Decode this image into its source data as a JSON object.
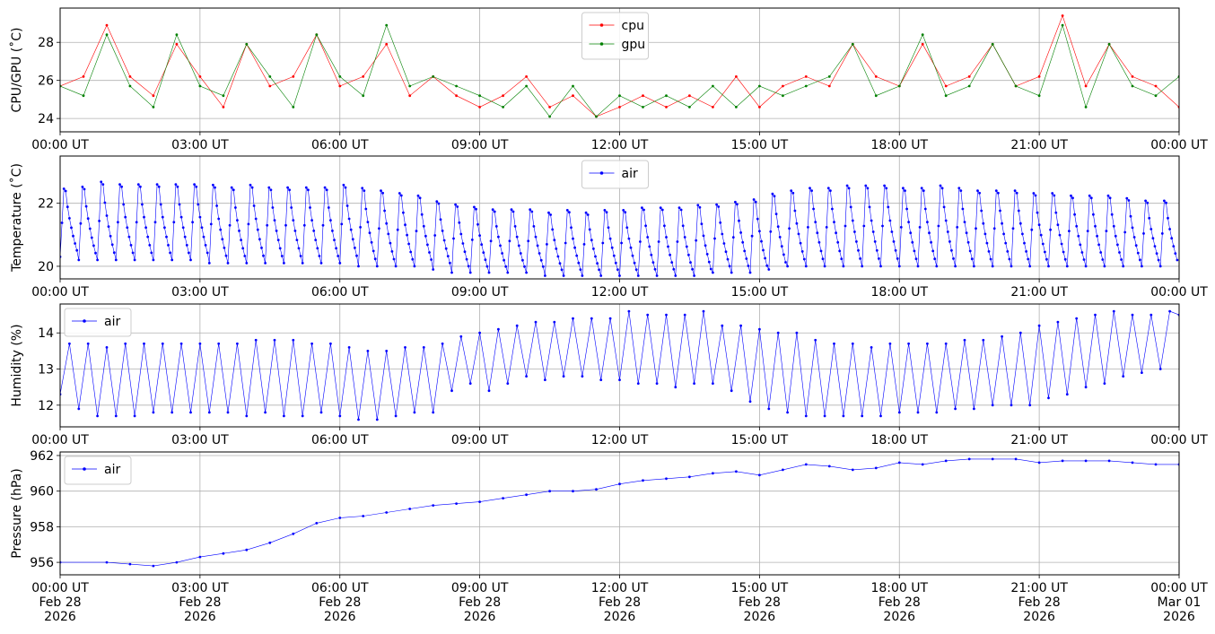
{
  "chart_data": [
    {
      "type": "line",
      "ylabel": "CPU/GPU (˚C)",
      "x_ticks": [
        "00:00 UT",
        "03:00 UT",
        "06:00 UT",
        "09:00 UT",
        "12:00 UT",
        "15:00 UT",
        "18:00 UT",
        "21:00 UT",
        "00:00 UT"
      ],
      "xlim_hours": [
        0,
        24
      ],
      "ylim": [
        23.3,
        29.8
      ],
      "y_ticks": [
        24,
        26,
        28
      ],
      "grid": true,
      "legend": "upper center",
      "series": [
        {
          "name": "cpu",
          "color": "#ff0000",
          "marker": "dot",
          "x_hours": [
            0,
            0.5,
            1,
            1.5,
            2,
            2.5,
            3,
            3.5,
            4,
            4.5,
            5,
            5.5,
            6,
            6.5,
            7,
            7.5,
            8,
            8.5,
            9,
            9.5,
            10,
            10.5,
            11,
            11.5,
            12,
            12.5,
            13,
            13.5,
            14,
            14.5,
            15,
            15.5,
            16,
            16.5,
            17,
            17.5,
            18,
            18.5,
            19,
            19.5,
            20,
            20.5,
            21,
            21.5,
            22,
            22.5,
            23,
            23.5,
            24
          ],
          "values": [
            25.7,
            26.2,
            28.9,
            26.2,
            25.2,
            27.9,
            26.2,
            24.6,
            27.9,
            25.7,
            26.2,
            28.4,
            25.7,
            26.2,
            27.9,
            25.2,
            26.2,
            25.2,
            24.6,
            25.2,
            26.2,
            24.6,
            25.2,
            24.1,
            24.6,
            25.2,
            24.6,
            25.2,
            24.6,
            26.2,
            24.6,
            25.7,
            26.2,
            25.7,
            27.9,
            26.2,
            25.7,
            27.9,
            25.7,
            26.2,
            27.9,
            25.7,
            26.2,
            29.4,
            25.7,
            27.9,
            26.2,
            25.7,
            24.6
          ]
        },
        {
          "name": "gpu",
          "color": "#008000",
          "marker": "dot",
          "x_hours": [
            0,
            0.5,
            1,
            1.5,
            2,
            2.5,
            3,
            3.5,
            4,
            4.5,
            5,
            5.5,
            6,
            6.5,
            7,
            7.5,
            8,
            8.5,
            9,
            9.5,
            10,
            10.5,
            11,
            11.5,
            12,
            12.5,
            13,
            13.5,
            14,
            14.5,
            15,
            15.5,
            16,
            16.5,
            17,
            17.5,
            18,
            18.5,
            19,
            19.5,
            20,
            20.5,
            21,
            21.5,
            22,
            22.5,
            23,
            23.5,
            24
          ],
          "values": [
            25.7,
            25.2,
            28.4,
            25.7,
            24.6,
            28.4,
            25.7,
            25.2,
            27.9,
            26.2,
            24.6,
            28.4,
            26.2,
            25.2,
            28.9,
            25.7,
            26.2,
            25.7,
            25.2,
            24.6,
            25.7,
            24.1,
            25.7,
            24.1,
            25.2,
            24.6,
            25.2,
            24.6,
            25.7,
            24.6,
            25.7,
            25.2,
            25.7,
            26.2,
            27.9,
            25.2,
            25.7,
            28.4,
            25.2,
            25.7,
            27.9,
            25.7,
            25.2,
            28.9,
            24.6,
            27.9,
            25.7,
            25.2,
            26.2
          ]
        }
      ]
    },
    {
      "type": "line",
      "ylabel": "Temperature (˚C)",
      "x_ticks": [
        "00:00 UT",
        "03:00 UT",
        "06:00 UT",
        "09:00 UT",
        "12:00 UT",
        "15:00 UT",
        "18:00 UT",
        "21:00 UT",
        "00:00 UT"
      ],
      "xlim_hours": [
        0,
        24
      ],
      "ylim": [
        19.6,
        23.5
      ],
      "y_ticks": [
        20,
        22
      ],
      "grid": true,
      "legend": "upper center",
      "series": [
        {
          "name": "air",
          "color": "#0000ff",
          "marker": "dot",
          "cycles": [
            {
              "start": 0.0,
              "peak": 23.0,
              "trough": 20.3
            },
            {
              "start": 0.4,
              "peak": 23.1,
              "trough": 20.2
            },
            {
              "start": 0.8,
              "peak": 23.3,
              "trough": 20.2
            },
            {
              "start": 1.2,
              "peak": 23.2,
              "trough": 20.2
            },
            {
              "start": 1.6,
              "peak": 23.2,
              "trough": 20.2
            },
            {
              "start": 2.0,
              "peak": 23.2,
              "trough": 20.2
            },
            {
              "start": 2.4,
              "peak": 23.2,
              "trough": 20.2
            },
            {
              "start": 2.8,
              "peak": 23.2,
              "trough": 20.2
            },
            {
              "start": 3.2,
              "peak": 23.2,
              "trough": 20.1
            },
            {
              "start": 3.6,
              "peak": 23.1,
              "trough": 20.1
            },
            {
              "start": 4.0,
              "peak": 23.2,
              "trough": 20.1
            },
            {
              "start": 4.4,
              "peak": 23.1,
              "trough": 20.1
            },
            {
              "start": 4.8,
              "peak": 23.1,
              "trough": 20.1
            },
            {
              "start": 5.2,
              "peak": 23.1,
              "trough": 20.1
            },
            {
              "start": 5.6,
              "peak": 23.1,
              "trough": 20.1
            },
            {
              "start": 6.0,
              "peak": 23.2,
              "trough": 20.1
            },
            {
              "start": 6.4,
              "peak": 23.1,
              "trough": 20.0
            },
            {
              "start": 6.8,
              "peak": 23.0,
              "trough": 20.0
            },
            {
              "start": 7.2,
              "peak": 22.9,
              "trough": 20.0
            },
            {
              "start": 7.6,
              "peak": 22.8,
              "trough": 20.0
            },
            {
              "start": 8.0,
              "peak": 22.6,
              "trough": 19.9
            },
            {
              "start": 8.4,
              "peak": 22.5,
              "trough": 19.8
            },
            {
              "start": 8.8,
              "peak": 22.4,
              "trough": 19.8
            },
            {
              "start": 9.2,
              "peak": 22.3,
              "trough": 19.8
            },
            {
              "start": 9.6,
              "peak": 22.3,
              "trough": 19.8
            },
            {
              "start": 10.0,
              "peak": 22.3,
              "trough": 19.8
            },
            {
              "start": 10.4,
              "peak": 22.2,
              "trough": 19.7
            },
            {
              "start": 10.8,
              "peak": 22.3,
              "trough": 19.7
            },
            {
              "start": 11.2,
              "peak": 22.2,
              "trough": 19.7
            },
            {
              "start": 11.6,
              "peak": 22.3,
              "trough": 19.7
            },
            {
              "start": 12.0,
              "peak": 22.3,
              "trough": 19.7
            },
            {
              "start": 12.4,
              "peak": 22.4,
              "trough": 19.7
            },
            {
              "start": 12.8,
              "peak": 22.4,
              "trough": 19.7
            },
            {
              "start": 13.2,
              "peak": 22.4,
              "trough": 19.7
            },
            {
              "start": 13.6,
              "peak": 22.5,
              "trough": 19.7
            },
            {
              "start": 14.0,
              "peak": 22.5,
              "trough": 19.8
            },
            {
              "start": 14.4,
              "peak": 22.6,
              "trough": 19.8
            },
            {
              "start": 14.8,
              "peak": 22.7,
              "trough": 19.8
            },
            {
              "start": 15.2,
              "peak": 22.9,
              "trough": 19.9
            },
            {
              "start": 15.6,
              "peak": 23.0,
              "trough": 20.0
            },
            {
              "start": 16.0,
              "peak": 23.1,
              "trough": 20.0
            },
            {
              "start": 16.4,
              "peak": 23.1,
              "trough": 20.0
            },
            {
              "start": 16.8,
              "peak": 23.2,
              "trough": 20.0
            },
            {
              "start": 17.2,
              "peak": 23.2,
              "trough": 20.0
            },
            {
              "start": 17.6,
              "peak": 23.2,
              "trough": 20.0
            },
            {
              "start": 18.0,
              "peak": 23.1,
              "trough": 20.0
            },
            {
              "start": 18.4,
              "peak": 23.1,
              "trough": 20.0
            },
            {
              "start": 18.8,
              "peak": 23.2,
              "trough": 20.0
            },
            {
              "start": 19.2,
              "peak": 23.1,
              "trough": 20.0
            },
            {
              "start": 19.6,
              "peak": 23.0,
              "trough": 20.0
            },
            {
              "start": 20.0,
              "peak": 23.0,
              "trough": 20.0
            },
            {
              "start": 20.4,
              "peak": 23.0,
              "trough": 20.0
            },
            {
              "start": 20.8,
              "peak": 22.9,
              "trough": 20.0
            },
            {
              "start": 21.2,
              "peak": 22.9,
              "trough": 20.0
            },
            {
              "start": 21.6,
              "peak": 22.8,
              "trough": 20.0
            },
            {
              "start": 22.0,
              "peak": 22.8,
              "trough": 20.0
            },
            {
              "start": 22.4,
              "peak": 22.8,
              "trough": 20.0
            },
            {
              "start": 22.8,
              "peak": 22.7,
              "trough": 20.0
            },
            {
              "start": 23.2,
              "peak": 22.6,
              "trough": 20.0
            },
            {
              "start": 23.6,
              "peak": 22.6,
              "trough": 20.0
            }
          ]
        }
      ]
    },
    {
      "type": "line",
      "ylabel": "Humidity (%)",
      "x_ticks": [
        "00:00 UT",
        "03:00 UT",
        "06:00 UT",
        "09:00 UT",
        "12:00 UT",
        "15:00 UT",
        "18:00 UT",
        "21:00 UT",
        "00:00 UT"
      ],
      "xlim_hours": [
        0,
        24
      ],
      "ylim": [
        11.4,
        14.8
      ],
      "y_ticks": [
        12,
        13,
        14
      ],
      "grid": true,
      "legend": "upper left",
      "series": [
        {
          "name": "air",
          "color": "#0000ff",
          "marker": "dot",
          "x_hours": [
            0,
            0.2,
            0.4,
            0.6,
            0.8,
            1.0,
            1.2,
            1.4,
            1.6,
            1.8,
            2.0,
            2.2,
            2.4,
            2.6,
            2.8,
            3.0,
            3.2,
            3.4,
            3.6,
            3.8,
            4.0,
            4.2,
            4.4,
            4.6,
            4.8,
            5.0,
            5.2,
            5.4,
            5.6,
            5.8,
            6.0,
            6.2,
            6.4,
            6.6,
            6.8,
            7.0,
            7.2,
            7.4,
            7.6,
            7.8,
            8.0,
            8.2,
            8.4,
            8.6,
            8.8,
            9.0,
            9.2,
            9.4,
            9.6,
            9.8,
            10.0,
            10.2,
            10.4,
            10.6,
            10.8,
            11.0,
            11.2,
            11.4,
            11.6,
            11.8,
            12.0,
            12.2,
            12.4,
            12.6,
            12.8,
            13.0,
            13.2,
            13.4,
            13.6,
            13.8,
            14.0,
            14.2,
            14.4,
            14.6,
            14.8,
            15.0,
            15.2,
            15.4,
            15.6,
            15.8,
            16.0,
            16.2,
            16.4,
            16.6,
            16.8,
            17.0,
            17.2,
            17.4,
            17.6,
            17.8,
            18.0,
            18.2,
            18.4,
            18.6,
            18.8,
            19.0,
            19.2,
            19.4,
            19.6,
            19.8,
            20.0,
            20.2,
            20.4,
            20.6,
            20.8,
            21.0,
            21.2,
            21.4,
            21.6,
            21.8,
            22.0,
            22.2,
            22.4,
            22.6,
            22.8,
            23.0,
            23.2,
            23.4,
            23.6,
            23.8,
            24.0
          ],
          "values": [
            12.3,
            13.7,
            11.9,
            13.7,
            11.7,
            13.6,
            11.7,
            13.7,
            11.7,
            13.7,
            11.8,
            13.7,
            11.8,
            13.7,
            11.8,
            13.7,
            11.8,
            13.7,
            11.8,
            13.7,
            11.7,
            13.8,
            11.8,
            13.8,
            11.7,
            13.8,
            11.7,
            13.7,
            11.8,
            13.7,
            11.7,
            13.6,
            11.6,
            13.5,
            11.6,
            13.5,
            11.7,
            13.6,
            11.8,
            13.6,
            11.8,
            13.7,
            12.4,
            13.9,
            12.6,
            14.0,
            12.4,
            14.1,
            12.6,
            14.2,
            12.8,
            14.3,
            12.7,
            14.3,
            12.8,
            14.4,
            12.8,
            14.4,
            12.7,
            14.4,
            12.7,
            14.6,
            12.6,
            14.5,
            12.6,
            14.5,
            12.5,
            14.5,
            12.6,
            14.6,
            12.6,
            14.2,
            12.4,
            14.2,
            12.1,
            14.1,
            11.9,
            14.0,
            11.8,
            14.0,
            11.7,
            13.8,
            11.7,
            13.7,
            11.7,
            13.7,
            11.7,
            13.6,
            11.7,
            13.7,
            11.8,
            13.7,
            11.8,
            13.7,
            11.8,
            13.7,
            11.9,
            13.8,
            11.9,
            13.8,
            12.0,
            13.9,
            12.0,
            14.0,
            12.0,
            14.2,
            12.2,
            14.3,
            12.3,
            14.4,
            12.5,
            14.5,
            12.6,
            14.6,
            12.8,
            14.5,
            12.9,
            14.5,
            13.0,
            14.6,
            14.5
          ]
        }
      ]
    },
    {
      "type": "line",
      "ylabel": "Pressure (hPa)",
      "x_ticks": [
        "00:00 UT\nFeb 28\n2026",
        "03:00 UT\nFeb 28\n2026",
        "06:00 UT\nFeb 28\n2026",
        "09:00 UT\nFeb 28\n2026",
        "12:00 UT\nFeb 28\n2026",
        "15:00 UT\nFeb 28\n2026",
        "18:00 UT\nFeb 28\n2026",
        "21:00 UT\nFeb 28\n2026",
        "00:00 UT\nMar 01\n2026"
      ],
      "xlim_hours": [
        0,
        24
      ],
      "ylim": [
        955.3,
        962.2
      ],
      "y_ticks": [
        956,
        958,
        960,
        962
      ],
      "grid": true,
      "legend": "upper left",
      "series": [
        {
          "name": "air",
          "color": "#0000ff",
          "marker": "dot",
          "x_hours": [
            0,
            1,
            1.5,
            2,
            2.5,
            3,
            3.5,
            4,
            4.5,
            5,
            5.5,
            6,
            6.5,
            7,
            7.5,
            8,
            8.5,
            9,
            9.5,
            10,
            10.5,
            11,
            11.5,
            12,
            12.5,
            13,
            13.5,
            14,
            14.5,
            15,
            15.5,
            16,
            16.5,
            17,
            17.5,
            18,
            18.5,
            19,
            19.5,
            20,
            20.5,
            21,
            21.5,
            22,
            22.5,
            23,
            23.5,
            24
          ],
          "values": [
            956.0,
            956.0,
            955.9,
            955.8,
            956.0,
            956.3,
            956.5,
            956.7,
            957.1,
            957.6,
            958.2,
            958.5,
            958.6,
            958.8,
            959.0,
            959.2,
            959.3,
            959.4,
            959.6,
            959.8,
            960.0,
            960.0,
            960.1,
            960.4,
            960.6,
            960.7,
            960.8,
            961.0,
            961.1,
            960.9,
            961.2,
            961.5,
            961.4,
            961.2,
            961.3,
            961.6,
            961.5,
            961.7,
            961.8,
            961.8,
            961.8,
            961.6,
            961.7,
            961.7,
            961.7,
            961.6,
            961.5,
            961.5
          ]
        }
      ]
    }
  ]
}
